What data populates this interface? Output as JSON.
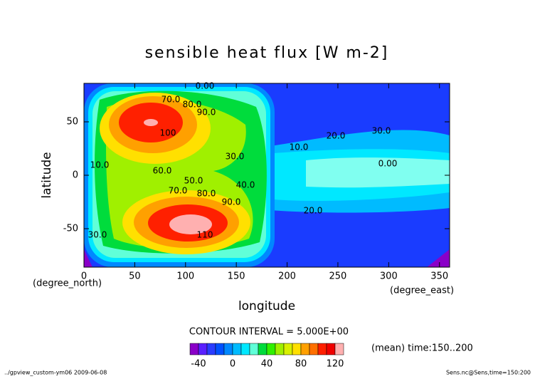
{
  "chart_data": {
    "type": "contour",
    "title": "sensible heat flux [W m-2]",
    "x_label": "longitude",
    "y_label": "latitude",
    "x_unit": "(degree_east)",
    "y_unit": "(degree_north)",
    "xlim": [
      0,
      360
    ],
    "xticks": [
      0,
      50,
      100,
      150,
      200,
      250,
      300,
      350
    ],
    "ylim": [
      -86,
      86
    ],
    "yticks": [
      -50,
      0,
      50
    ],
    "contour_labels": [
      "0.00",
      "70.0",
      "80.0",
      "90.0",
      "100",
      "60.0",
      "50.0",
      "40.0",
      "30.0",
      "20.0",
      "10.0",
      "0.00",
      "30.0",
      "20.0",
      "70.0",
      "80.0",
      "90.0",
      "110",
      "10.0",
      "30.0"
    ],
    "contour_interval": "CONTOUR INTERVAL = 5.000E+00",
    "colorbar": {
      "levels": [
        -50,
        -40,
        -30,
        -20,
        -10,
        0,
        10,
        20,
        30,
        40,
        50,
        60,
        70,
        80,
        90,
        100,
        110,
        120,
        130
      ],
      "colors": [
        "#8a00c8",
        "#5a20ff",
        "#2a3cff",
        "#0050ff",
        "#0088ff",
        "#00bbff",
        "#00e8ff",
        "#60ffd8",
        "#00dc3c",
        "#30f000",
        "#a0f000",
        "#d8f000",
        "#ffe000",
        "#ffa000",
        "#ff7000",
        "#ff2000",
        "#f00000",
        "#ffb0b0"
      ],
      "ticks": [
        -40,
        0,
        40,
        80,
        120
      ]
    },
    "annotation": "(mean) time:150..200",
    "footer_left": "../gpview_custom-ym06  2009-06-08",
    "footer_right": "Sens.nc@Sens,time=150:200"
  }
}
